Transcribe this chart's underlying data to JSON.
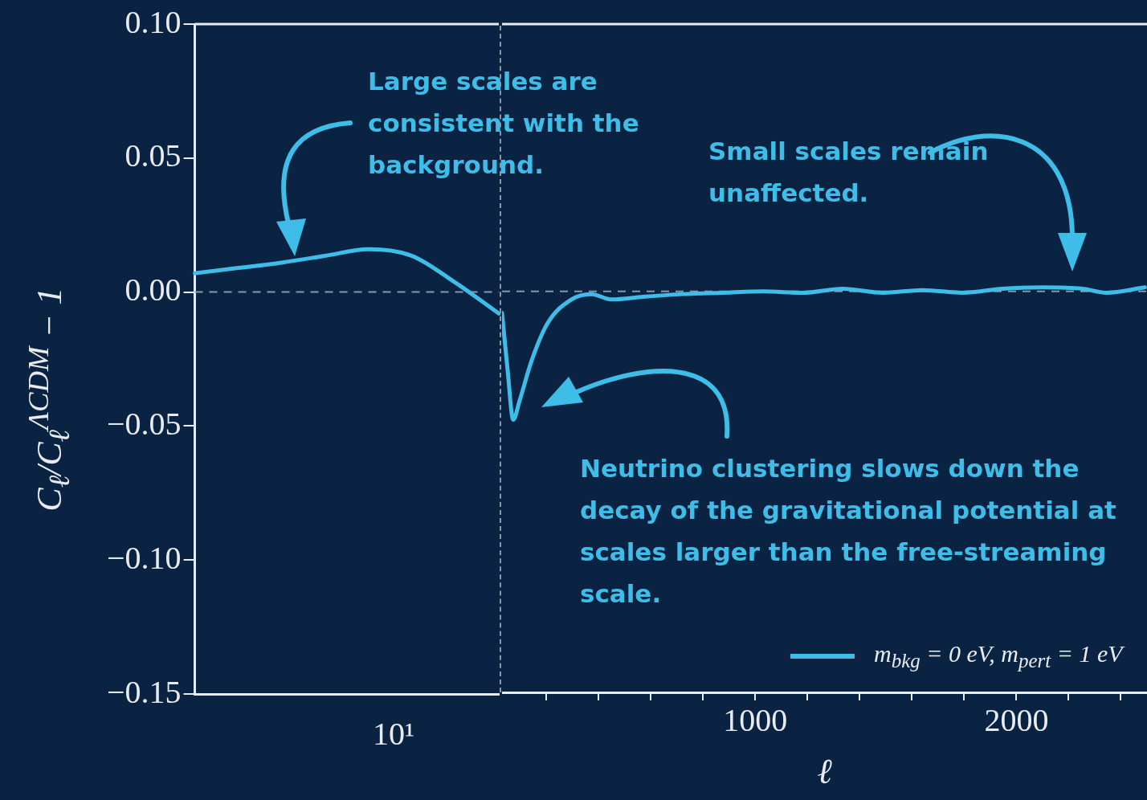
{
  "chart_data": [
    {
      "type": "line",
      "ylabel": "C$_{ℓ}$/C$_{ℓ}$$^{ΛCDM}$ − 1",
      "ylim": [
        -0.15,
        0.1
      ],
      "categories": [
        null,
        null,
        null,
        null,
        null,
        null,
        null,
        null
      ],
      "yticks": [
        {
          "value": -0.15,
          "label": "−0.15"
        },
        {
          "value": -0.1,
          "label": "−0.10"
        },
        {
          "value": -0.05,
          "label": "−0.05"
        },
        {
          "value": 0,
          "label": "0.00"
        },
        {
          "value": 0.05,
          "label": "0.05"
        },
        {
          "value": 0.1,
          "label": "0.10"
        }
      ],
      "series": [
        {
          "color": "#3fbde9",
          "values": [
            0.007,
            0.009,
            0.011,
            0.0135,
            0.016,
            0.0135,
            0.0035,
            -0.008
          ]
        }
      ],
      "ref_lines": [
        {
          "axis": "y",
          "value": 0,
          "line_style": "dashed",
          "color": "#8a97a8"
        }
      ],
      "annotations": [
        "Large scales are consistent with the background.",
        "10¹"
      ]
    },
    {
      "type": "line",
      "xlabel": "ℓ",
      "xlim": [
        30,
        2500
      ],
      "ylim": [
        -0.15,
        0.1
      ],
      "tick_labels": "x",
      "xticks": [
        {
          "value": 200,
          "label": null
        },
        {
          "value": 400,
          "label": null
        },
        {
          "value": 600,
          "label": null
        },
        {
          "value": 800,
          "label": null
        },
        {
          "value": 1000,
          "label": "1000"
        },
        {
          "value": 1200,
          "label": null
        },
        {
          "value": 1400,
          "label": null
        },
        {
          "value": 1600,
          "label": null
        },
        {
          "value": 1800,
          "label": null
        },
        {
          "value": 2000,
          "label": "2000"
        },
        {
          "value": 2200,
          "label": null
        },
        {
          "value": 2400,
          "label": null
        }
      ],
      "legend": "bottom right",
      "series": [
        {
          "name": "m$_{bkg}$ = 0 eV, m$_{pert}$ = 1 eV",
          "color": "#3fbde9",
          "x": [
            30,
            51,
            73,
            97,
            143,
            204,
            296,
            372,
            449,
            571,
            724,
            877,
            1030,
            1182,
            1335,
            1488,
            1641,
            1794,
            1947,
            2100,
            2253,
            2345,
            2492
          ],
          "values": [
            -0.008,
            -0.029,
            -0.048,
            -0.041,
            -0.026,
            -0.012,
            -0.003,
            -0.001,
            -0.003,
            -0.002,
            -0.001,
            -0.0005,
            0,
            -0.0005,
            0.001,
            -0.0005,
            0.0005,
            -0.0005,
            0.001,
            0.0015,
            0.001,
            -0.0005,
            0.0015
          ]
        }
      ],
      "ref_lines": [
        {
          "axis": "y",
          "value": 0,
          "line_style": "dashed",
          "color": "#8a97a8"
        }
      ],
      "annotations": [
        "Small scales remain unaffected.",
        "Neutrino clustering slows down the decay of the gravitational potential at scales larger than the free-streaming scale."
      ]
    }
  ]
}
